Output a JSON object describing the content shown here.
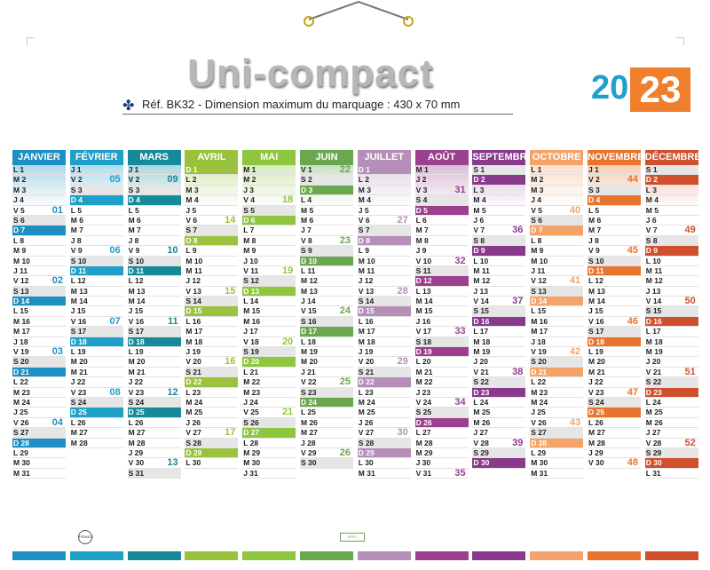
{
  "header": {
    "title": "Uni-compact",
    "reference": "Réf. BK32 - Dimension maximum du marquage : 430 x 70 mm",
    "year_prefix": "20",
    "year_suffix": "23"
  },
  "months": [
    {
      "name": "JANVIER",
      "color": "#1e8fc2",
      "start": 0,
      "days": 31,
      "weeks": [
        {
          "d": 5,
          "w": "01"
        },
        {
          "d": 12,
          "w": "02"
        },
        {
          "d": 19,
          "w": "03"
        },
        {
          "d": 26,
          "w": "04"
        }
      ]
    },
    {
      "name": "FÉVRIER",
      "color": "#1fa0c8",
      "start": 3,
      "days": 28,
      "weeks": [
        {
          "d": 2,
          "w": "05"
        },
        {
          "d": 9,
          "w": "06"
        },
        {
          "d": 16,
          "w": "07"
        },
        {
          "d": 23,
          "w": "08"
        }
      ]
    },
    {
      "name": "MARS",
      "color": "#178a99",
      "start": 3,
      "days": 31,
      "weeks": [
        {
          "d": 2,
          "w": "09"
        },
        {
          "d": 9,
          "w": "10"
        },
        {
          "d": 16,
          "w": "11"
        },
        {
          "d": 23,
          "w": "12"
        },
        {
          "d": 30,
          "w": "13"
        }
      ]
    },
    {
      "name": "AVRIL",
      "color": "#9ac23c",
      "start": 6,
      "days": 30,
      "weeks": [
        {
          "d": 6,
          "w": "14"
        },
        {
          "d": 13,
          "w": "15"
        },
        {
          "d": 20,
          "w": "16"
        },
        {
          "d": 27,
          "w": "17"
        }
      ]
    },
    {
      "name": "MAI",
      "color": "#8ec63f",
      "start": 1,
      "days": 31,
      "weeks": [
        {
          "d": 4,
          "w": "18"
        },
        {
          "d": 11,
          "w": "19"
        },
        {
          "d": 18,
          "w": "20"
        },
        {
          "d": 25,
          "w": "21"
        }
      ]
    },
    {
      "name": "JUIN",
      "color": "#6aa84f",
      "start": 4,
      "days": 30,
      "weeks": [
        {
          "d": 1,
          "w": "22"
        },
        {
          "d": 8,
          "w": "23"
        },
        {
          "d": 15,
          "w": "24"
        },
        {
          "d": 22,
          "w": "25"
        },
        {
          "d": 29,
          "w": "26"
        }
      ]
    },
    {
      "name": "JUILLET",
      "color": "#b58fb8",
      "start": 6,
      "days": 31,
      "weeks": [
        {
          "d": 6,
          "w": "27"
        },
        {
          "d": 13,
          "w": "28"
        },
        {
          "d": 20,
          "w": "29"
        },
        {
          "d": 27,
          "w": "30"
        }
      ]
    },
    {
      "name": "AOÛT",
      "color": "#9b3f8f",
      "start": 2,
      "days": 31,
      "weeks": [
        {
          "d": 3,
          "w": "31"
        },
        {
          "d": 10,
          "w": "32"
        },
        {
          "d": 17,
          "w": "33"
        },
        {
          "d": 24,
          "w": "34"
        },
        {
          "d": 31,
          "w": "35"
        }
      ]
    },
    {
      "name": "SEPTEMBRE",
      "color": "#8a3a8c",
      "start": 5,
      "days": 30,
      "weeks": [
        {
          "d": 7,
          "w": "36"
        },
        {
          "d": 14,
          "w": "37"
        },
        {
          "d": 21,
          "w": "38"
        },
        {
          "d": 28,
          "w": "39"
        }
      ]
    },
    {
      "name": "OCTOBRE",
      "color": "#f4a46a",
      "start": 0,
      "days": 31,
      "weeks": [
        {
          "d": 5,
          "w": "40"
        },
        {
          "d": 12,
          "w": "41"
        },
        {
          "d": 19,
          "w": "42"
        },
        {
          "d": 26,
          "w": "43"
        }
      ]
    },
    {
      "name": "NOVEMBRE",
      "color": "#e8742d",
      "start": 3,
      "days": 30,
      "weeks": [
        {
          "d": 2,
          "w": "44"
        },
        {
          "d": 9,
          "w": "45"
        },
        {
          "d": 16,
          "w": "46"
        },
        {
          "d": 23,
          "w": "47"
        },
        {
          "d": 30,
          "w": "48"
        }
      ]
    },
    {
      "name": "DÉCEMBRE",
      "color": "#d0502e",
      "start": 5,
      "days": 31,
      "weeks": [
        {
          "d": 7,
          "w": "49"
        },
        {
          "d": 14,
          "w": "50"
        },
        {
          "d": 21,
          "w": "51"
        },
        {
          "d": 28,
          "w": "52"
        }
      ]
    }
  ],
  "weekday_letters": [
    "L",
    "M",
    "M",
    "J",
    "V",
    "S",
    "D"
  ]
}
